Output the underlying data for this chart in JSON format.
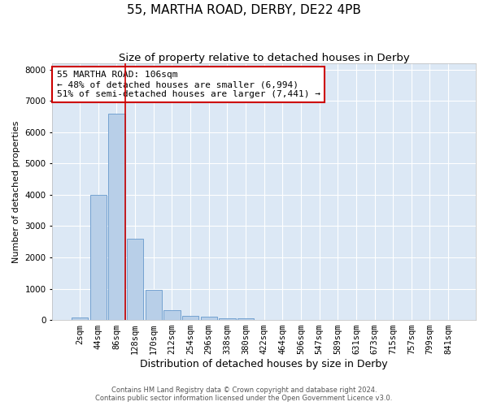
{
  "title": "55, MARTHA ROAD, DERBY, DE22 4PB",
  "subtitle": "Size of property relative to detached houses in Derby",
  "xlabel": "Distribution of detached houses by size in Derby",
  "ylabel": "Number of detached properties",
  "bin_labels": [
    "2sqm",
    "44sqm",
    "86sqm",
    "128sqm",
    "170sqm",
    "212sqm",
    "254sqm",
    "296sqm",
    "338sqm",
    "380sqm",
    "422sqm",
    "464sqm",
    "506sqm",
    "547sqm",
    "589sqm",
    "631sqm",
    "673sqm",
    "715sqm",
    "757sqm",
    "799sqm",
    "841sqm"
  ],
  "bar_heights": [
    80,
    4000,
    6600,
    2600,
    950,
    320,
    130,
    110,
    60,
    50,
    0,
    0,
    0,
    0,
    0,
    0,
    0,
    0,
    0,
    0,
    0
  ],
  "bar_color": "#b8cfe8",
  "bar_edge_color": "#6699cc",
  "vline_color": "#cc0000",
  "annotation_text": "55 MARTHA ROAD: 106sqm\n← 48% of detached houses are smaller (6,994)\n51% of semi-detached houses are larger (7,441) →",
  "annotation_box_color": "#cc0000",
  "ylim": [
    0,
    8200
  ],
  "yticks": [
    0,
    1000,
    2000,
    3000,
    4000,
    5000,
    6000,
    7000,
    8000
  ],
  "background_color": "#dce8f5",
  "grid_color": "white",
  "footer_line1": "Contains HM Land Registry data © Crown copyright and database right 2024.",
  "footer_line2": "Contains public sector information licensed under the Open Government Licence v3.0.",
  "title_fontsize": 11,
  "subtitle_fontsize": 9.5,
  "xlabel_fontsize": 9,
  "ylabel_fontsize": 8,
  "tick_fontsize": 7.5
}
